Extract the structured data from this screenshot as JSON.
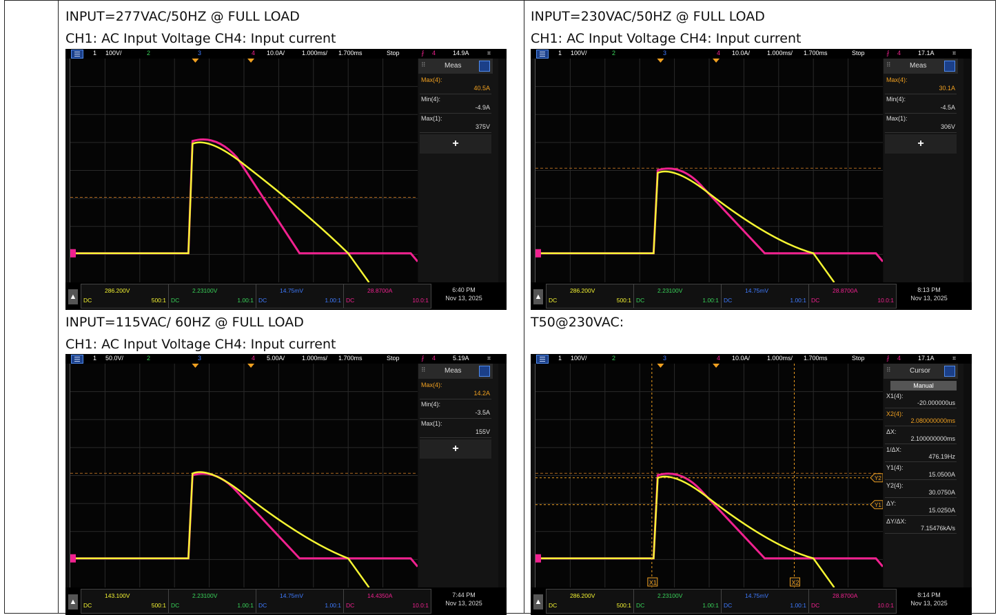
{
  "captions": {
    "tl_title": "INPUT=277VAC/50HZ @ FULL LOAD",
    "tl_sub": "CH1: AC Input Voltage CH4: Input current",
    "tr_title": "INPUT=230VAC/50HZ @ FULL LOAD",
    "tr_sub": "CH1: AC Input Voltage CH4: Input current",
    "bl_title": "INPUT=115VAC/ 60HZ @ FULL LOAD",
    "bl_sub": "CH1: AC Input Voltage CH4: Input current",
    "br_title": "T50@230VAC:"
  },
  "scopes": [
    {
      "id": "tl",
      "top": {
        "ch1": "1",
        "ch1_scale": "100V/",
        "ch2": "2",
        "ch3": "3",
        "ch4": "4",
        "ch4_scale": "10.0A/",
        "timebase": "1.000ms/",
        "delay": "1.700ms",
        "state": "Stop",
        "trig_ch": "4",
        "trig_level": "14.9A"
      },
      "panel": {
        "title": "Meas",
        "rows": [
          {
            "name": "Max(4):",
            "value": "40.5A",
            "hl": true
          },
          {
            "name": "Min(4):",
            "value": "-4.9A"
          },
          {
            "name": "Max(1):",
            "value": "375V"
          }
        ],
        "plus": "+"
      },
      "bottom": {
        "ch1_val": "286.200V",
        "ch1_dc": "DC",
        "ch1_probe": "500:1",
        "ch2_val": "2.23100V",
        "ch2_dc": "DC",
        "ch2_probe": "1.00:1",
        "ch3_val": "14.75mV",
        "ch3_dc": "DC",
        "ch3_probe": "1.00:1",
        "ch4_val": "28.8700A",
        "ch4_dc": "DC",
        "ch4_probe": "10.0:1",
        "time": "6:40 PM",
        "date": "Nov 13, 2025"
      },
      "ref_level": 0.62,
      "cur_peak": 0.35,
      "volt_peak": 0.35
    },
    {
      "id": "tr",
      "top": {
        "ch1": "1",
        "ch1_scale": "100V/",
        "ch2": "2",
        "ch3": "3",
        "ch4": "4",
        "ch4_scale": "10.0A/",
        "timebase": "1.000ms/",
        "delay": "1.700ms",
        "state": "Stop",
        "trig_ch": "4",
        "trig_level": "17.1A"
      },
      "panel": {
        "title": "Meas",
        "rows": [
          {
            "name": "Max(4):",
            "value": "30.1A",
            "hl": true
          },
          {
            "name": "Min(4):",
            "value": "-4.5A"
          },
          {
            "name": "Max(1):",
            "value": "306V"
          }
        ],
        "plus": "+"
      },
      "bottom": {
        "ch1_val": "286.200V",
        "ch1_dc": "DC",
        "ch1_probe": "500:1",
        "ch2_val": "2.23100V",
        "ch2_dc": "DC",
        "ch2_probe": "1.00:1",
        "ch3_val": "14.75mV",
        "ch3_dc": "DC",
        "ch3_probe": "1.00:1",
        "ch4_val": "28.8700A",
        "ch4_dc": "DC",
        "ch4_probe": "10.0:1",
        "time": "8:13 PM",
        "date": "Nov 13, 2025"
      },
      "ref_level": 0.49,
      "cur_peak": 0.48,
      "volt_peak": 0.48
    },
    {
      "id": "bl",
      "top": {
        "ch1": "1",
        "ch1_scale": "50.0V/",
        "ch2": "2",
        "ch3": "3",
        "ch4": "4",
        "ch4_scale": "5.00A/",
        "timebase": "1.000ms/",
        "delay": "1.700ms",
        "state": "Stop",
        "trig_ch": "4",
        "trig_level": "5.19A"
      },
      "panel": {
        "title": "Meas",
        "rows": [
          {
            "name": "Max(4):",
            "value": "14.2A",
            "hl": true
          },
          {
            "name": "Min(4):",
            "value": "-3.5A"
          },
          {
            "name": "Max(1):",
            "value": "155V"
          }
        ],
        "plus": "+"
      },
      "bottom": {
        "ch1_val": "143.100V",
        "ch1_dc": "DC",
        "ch1_probe": "500:1",
        "ch2_val": "2.23100V",
        "ch2_dc": "DC",
        "ch2_probe": "1.00:1",
        "ch3_val": "14.75mV",
        "ch3_dc": "DC",
        "ch3_probe": "1.00:1",
        "ch4_val": "14.4350A",
        "ch4_dc": "DC",
        "ch4_probe": "10.0:1",
        "time": "7:44 PM",
        "date": "Nov 13, 2025"
      },
      "ref_level": 0.49,
      "cur_peak": 0.48,
      "volt_peak": 0.46
    },
    {
      "id": "br",
      "top": {
        "ch1": "1",
        "ch1_scale": "100V/",
        "ch2": "2",
        "ch3": "3",
        "ch4": "4",
        "ch4_scale": "10.0A/",
        "timebase": "1.000ms/",
        "delay": "1.700ms",
        "state": "Stop",
        "trig_ch": "4",
        "trig_level": "17.1A"
      },
      "cursor": {
        "title": "Cursor",
        "mode": "Manual",
        "rows": [
          {
            "name": "X1(4):",
            "value": "-20.000000us"
          },
          {
            "name": "X2(4):",
            "value": "2.080000000ms",
            "hl": true
          },
          {
            "name": "ΔX:",
            "value": "2.100000000ms"
          },
          {
            "name": "1/ΔX:",
            "value": "476.19Hz"
          },
          {
            "name": "Y1(4):",
            "value": "15.0500A"
          },
          {
            "name": "Y2(4):",
            "value": "30.0750A"
          },
          {
            "name": "ΔY:",
            "value": "15.0250A"
          },
          {
            "name": "ΔY/ΔX:",
            "value": "7.15476kA/s"
          }
        ],
        "x1_label": "X1",
        "x2_label": "X2",
        "y1_label": "Y1",
        "y2_label": "Y2"
      },
      "bottom": {
        "ch1_val": "286.200V",
        "ch1_dc": "DC",
        "ch1_probe": "500:1",
        "ch2_val": "2.23100V",
        "ch2_dc": "DC",
        "ch2_probe": "1.00:1",
        "ch3_val": "14.75mV",
        "ch3_dc": "DC",
        "ch3_probe": "1.00:1",
        "ch4_val": "28.8700A",
        "ch4_dc": "DC",
        "ch4_probe": "10.0:1",
        "time": "8:14 PM",
        "date": "Nov 13, 2025"
      },
      "ref_level": 0.49,
      "cur_peak": 0.48,
      "volt_peak": 0.48
    }
  ],
  "colors": {
    "ch1": "#f5f532",
    "ch2": "#39d35a",
    "ch3": "#3f7bff",
    "ch4": "#f0218f",
    "accent": "#f0a020"
  }
}
